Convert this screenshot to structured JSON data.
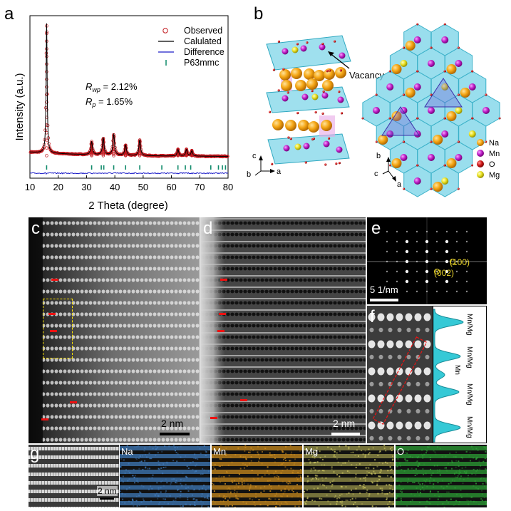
{
  "panel_labels": {
    "a": "a",
    "b": "b",
    "c": "c",
    "d": "d",
    "e": "e",
    "f": "f",
    "g": "g"
  },
  "panel_a": {
    "ylabel": "Intensity (a.u.)",
    "xlabel": "2 Theta (degree)",
    "legend": [
      "Observed",
      "Calulated",
      "Difference",
      "P63mmc"
    ],
    "rwp_symbol": "R",
    "rwp_sub": "wp",
    "rwp_value": " = 2.12%",
    "rp_symbol": "R",
    "rp_sub": "p",
    "rp_value": " = 1.65%",
    "colors": {
      "observed": "#c0141a",
      "calculated": "#000000",
      "difference": "#1c1cc8",
      "bragg": "#0f8a6a"
    }
  },
  "chart_data": {
    "type": "line",
    "xlim": [
      10,
      80
    ],
    "xticks": [
      "10",
      "20",
      "30",
      "40",
      "50",
      "60",
      "70",
      "80"
    ],
    "xlabel": "2 Theta (degree)",
    "ylabel": "Intensity (a.u.)",
    "legend_position": "top-right",
    "peaks": [
      {
        "x": 15.9,
        "h": 1.0
      },
      {
        "x": 31.8,
        "h": 0.1
      },
      {
        "x": 35.9,
        "h": 0.13
      },
      {
        "x": 39.6,
        "h": 0.16
      },
      {
        "x": 43.8,
        "h": 0.08
      },
      {
        "x": 48.8,
        "h": 0.12
      },
      {
        "x": 62.3,
        "h": 0.05
      },
      {
        "x": 65.3,
        "h": 0.05
      },
      {
        "x": 67.2,
        "h": 0.04
      }
    ],
    "bragg_positions": [
      15.9,
      31.8,
      35.2,
      36.1,
      39.6,
      43.8,
      48.8,
      56.6,
      62.3,
      64.9,
      66.8,
      73.9,
      76.6,
      78.0,
      79.1
    ]
  },
  "panel_b": {
    "vacancy_label": "Vacancy",
    "axes_left": {
      "up": "c",
      "right": "a",
      "back": "b"
    },
    "axes_right": {
      "up": "b",
      "right": "a",
      "back": "c"
    },
    "legend": [
      {
        "label": "Na",
        "color": "#f3a416"
      },
      {
        "label": "Mn",
        "color": "#c020c8"
      },
      {
        "label": "O",
        "color": "#d21a1a"
      },
      {
        "label": "Mg",
        "color": "#e9e020"
      }
    ]
  },
  "panel_c": {
    "scale_label": "2 nm"
  },
  "panel_d": {
    "scale_label": "2 nm"
  },
  "panel_e": {
    "scale_label": "5 1/nm",
    "spot1": "(100)",
    "spot2": "(002)"
  },
  "panel_f": {
    "profile_labels": [
      "Mn/Mg",
      "Mn/Mg",
      "Mn",
      "Mn/Mg",
      "Mn/Mg"
    ]
  },
  "panel_g": {
    "scale_label": "2 nm",
    "maps": [
      "Na",
      "Mn",
      "Mg",
      "O"
    ],
    "map_colors": {
      "Na": "#3f79b8",
      "Mn": "#c88a1e",
      "Mg": "#c9c35e",
      "O": "#2c9c34"
    }
  }
}
